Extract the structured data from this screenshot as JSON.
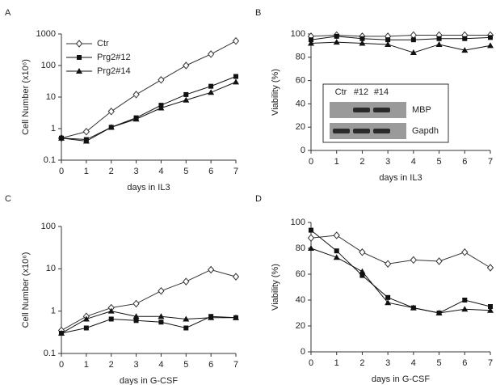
{
  "chart_data": [
    {
      "type": "line",
      "label": "A",
      "xlabel": "days in IL3",
      "ylabel": "Cell Number (x10⁶)",
      "x": [
        0,
        1,
        2,
        3,
        4,
        5,
        6,
        7
      ],
      "xlim": [
        0,
        7
      ],
      "xticks": [
        0,
        1,
        2,
        3,
        4,
        5,
        6,
        7
      ],
      "ylim": [
        0.1,
        1000
      ],
      "yticks": [
        0.1,
        1,
        10,
        100,
        1000
      ],
      "log": true,
      "legend": "upper left",
      "series": [
        {
          "name": "Ctr",
          "color": "#333333",
          "marker": "open-diamond",
          "values": [
            0.5,
            0.8,
            3.5,
            12,
            35,
            100,
            230,
            600
          ]
        },
        {
          "name": "Prg2#12",
          "color": "#111111",
          "marker": "square",
          "values": [
            0.5,
            0.45,
            1.1,
            2.2,
            5.5,
            12,
            22,
            45
          ]
        },
        {
          "name": "Prg2#14",
          "color": "#111111",
          "marker": "triangle",
          "values": [
            0.5,
            0.4,
            1.1,
            2,
            4.5,
            8,
            14,
            30
          ]
        }
      ]
    },
    {
      "type": "line",
      "label": "B",
      "xlabel": "days in IL3",
      "ylabel": "Viability (%)",
      "x": [
        0,
        1,
        2,
        3,
        4,
        5,
        6,
        7
      ],
      "xlim": [
        0,
        7
      ],
      "xticks": [
        0,
        1,
        2,
        3,
        4,
        5,
        6,
        7
      ],
      "ylim": [
        0,
        100
      ],
      "yticks": [
        0,
        20,
        40,
        60,
        80,
        100
      ],
      "log": false,
      "inset": {
        "lanes": [
          "Ctr",
          "#12",
          "#14"
        ],
        "rows": [
          "MBP",
          "Gapdh"
        ]
      },
      "series": [
        {
          "color": "#333333",
          "marker": "open-diamond",
          "values": [
            98,
            99,
            98,
            98,
            99,
            99,
            99,
            99
          ]
        },
        {
          "color": "#111111",
          "marker": "square",
          "values": [
            95,
            98,
            96,
            95,
            95,
            96,
            96,
            97
          ]
        },
        {
          "color": "#111111",
          "marker": "triangle",
          "values": [
            92,
            93,
            92,
            91,
            84,
            91,
            86,
            90
          ]
        }
      ]
    },
    {
      "type": "line",
      "label": "C",
      "xlabel": "days in G-CSF",
      "ylabel": "Cell Number (x10⁶)",
      "x": [
        0,
        1,
        2,
        3,
        4,
        5,
        6,
        7
      ],
      "xlim": [
        0,
        7
      ],
      "xticks": [
        0,
        1,
        2,
        3,
        4,
        5,
        6,
        7
      ],
      "ylim": [
        0.1,
        100
      ],
      "yticks": [
        0.1,
        1,
        10,
        100
      ],
      "log": true,
      "series": [
        {
          "color": "#333333",
          "marker": "open-diamond",
          "values": [
            0.35,
            0.75,
            1.2,
            1.5,
            3,
            5,
            9.5,
            6.5
          ]
        },
        {
          "color": "#111111",
          "marker": "square",
          "values": [
            0.3,
            0.4,
            0.65,
            0.6,
            0.55,
            0.4,
            0.75,
            0.7
          ]
        },
        {
          "color": "#111111",
          "marker": "triangle",
          "values": [
            0.3,
            0.65,
            1.0,
            0.75,
            0.75,
            0.65,
            0.7,
            0.7
          ]
        }
      ]
    },
    {
      "type": "line",
      "label": "D",
      "xlabel": "days in G-CSF",
      "ylabel": "Viability  (%)",
      "x": [
        0,
        1,
        2,
        3,
        4,
        5,
        6,
        7
      ],
      "xlim": [
        0,
        7
      ],
      "xticks": [
        0,
        1,
        2,
        3,
        4,
        5,
        6,
        7
      ],
      "ylim": [
        0,
        100
      ],
      "yticks": [
        0,
        20,
        40,
        60,
        80,
        100
      ],
      "log": false,
      "series": [
        {
          "color": "#333333",
          "marker": "open-diamond",
          "values": [
            88,
            90,
            77,
            68,
            71,
            70,
            77,
            65
          ]
        },
        {
          "color": "#111111",
          "marker": "square",
          "values": [
            94,
            78,
            59,
            42,
            34,
            30,
            40,
            35
          ]
        },
        {
          "color": "#111111",
          "marker": "triangle",
          "values": [
            80,
            73,
            62,
            38,
            34,
            30,
            33,
            32
          ]
        }
      ]
    }
  ]
}
